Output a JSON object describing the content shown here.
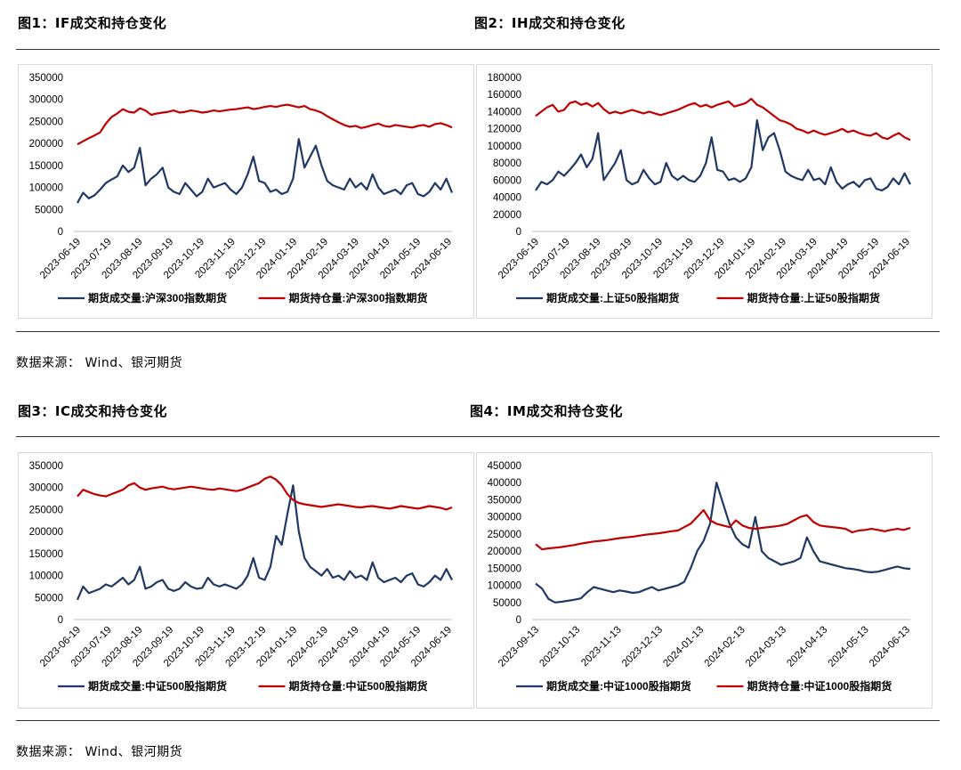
{
  "figures": [
    {
      "title": "图1：IF成交和持仓变化"
    },
    {
      "title": "图2：IH成交和持仓变化"
    },
    {
      "title": "图3：IC成交和持仓变化"
    },
    {
      "title": "图4：IM成交和持仓变化"
    }
  ],
  "sources": [
    "数据来源： Wind、银河期货",
    "数据来源： Wind、银河期货"
  ],
  "colors": {
    "volume": "#1f3864",
    "open_interest": "#c00000",
    "axis": "#bfbfbf"
  },
  "chart_data": [
    {
      "type": "line",
      "ylim": [
        0,
        350000
      ],
      "yticks": [
        "350000",
        "300000",
        "250000",
        "200000",
        "150000",
        "100000",
        "50000",
        "0"
      ],
      "xticks": [
        "2023-06-19",
        "2023-07-19",
        "2023-08-19",
        "2023-09-19",
        "2023-10-19",
        "2023-11-19",
        "2023-12-19",
        "2024-01-19",
        "2024-02-19",
        "2024-03-19",
        "2024-04-19",
        "2024-05-19",
        "2024-06-19"
      ],
      "series": [
        {
          "name": "期货成交量:沪深300指数期货",
          "values": [
            65000,
            88000,
            75000,
            82000,
            95000,
            110000,
            118000,
            125000,
            150000,
            135000,
            145000,
            190000,
            105000,
            120000,
            130000,
            145000,
            100000,
            90000,
            85000,
            110000,
            95000,
            80000,
            90000,
            120000,
            100000,
            105000,
            110000,
            95000,
            85000,
            100000,
            130000,
            170000,
            115000,
            110000,
            90000,
            95000,
            85000,
            90000,
            120000,
            210000,
            145000,
            170000,
            195000,
            150000,
            115000,
            105000,
            100000,
            95000,
            120000,
            100000,
            110000,
            95000,
            130000,
            100000,
            85000,
            90000,
            95000,
            85000,
            105000,
            110000,
            85000,
            80000,
            90000,
            110000,
            95000,
            120000,
            88000
          ]
        },
        {
          "name": "期货持仓量:沪深300指数期货",
          "values": [
            198000,
            205000,
            212000,
            218000,
            225000,
            245000,
            260000,
            268000,
            278000,
            272000,
            270000,
            280000,
            275000,
            265000,
            268000,
            270000,
            272000,
            275000,
            270000,
            272000,
            275000,
            273000,
            270000,
            272000,
            275000,
            273000,
            275000,
            277000,
            278000,
            280000,
            282000,
            278000,
            280000,
            283000,
            285000,
            283000,
            286000,
            288000,
            285000,
            282000,
            285000,
            278000,
            275000,
            270000,
            262000,
            255000,
            248000,
            242000,
            238000,
            240000,
            235000,
            238000,
            242000,
            245000,
            240000,
            238000,
            242000,
            240000,
            238000,
            236000,
            240000,
            242000,
            238000,
            244000,
            246000,
            242000,
            236000
          ]
        }
      ]
    },
    {
      "type": "line",
      "ylim": [
        0,
        180000
      ],
      "yticks": [
        "180000",
        "160000",
        "140000",
        "120000",
        "100000",
        "80000",
        "60000",
        "40000",
        "20000",
        "0"
      ],
      "xticks": [
        "2023-06-19",
        "2023-07-19",
        "2023-08-19",
        "2023-09-19",
        "2023-10-19",
        "2023-11-19",
        "2023-12-19",
        "2024-01-19",
        "2024-02-19",
        "2024-03-19",
        "2024-04-19",
        "2024-05-19",
        "2024-06-19"
      ],
      "series": [
        {
          "name": "期货成交量:上证50股指期货",
          "values": [
            48000,
            58000,
            55000,
            60000,
            70000,
            65000,
            72000,
            80000,
            90000,
            75000,
            85000,
            115000,
            60000,
            70000,
            80000,
            95000,
            60000,
            55000,
            58000,
            72000,
            62000,
            55000,
            58000,
            80000,
            65000,
            60000,
            65000,
            60000,
            58000,
            65000,
            80000,
            110000,
            72000,
            70000,
            60000,
            62000,
            58000,
            62000,
            75000,
            130000,
            95000,
            110000,
            115000,
            95000,
            70000,
            65000,
            62000,
            60000,
            72000,
            60000,
            62000,
            55000,
            75000,
            58000,
            50000,
            55000,
            58000,
            52000,
            60000,
            62000,
            50000,
            48000,
            52000,
            62000,
            55000,
            68000,
            55000
          ]
        },
        {
          "name": "期货持仓量:上证50股指期货",
          "values": [
            135000,
            140000,
            145000,
            148000,
            140000,
            142000,
            150000,
            152000,
            148000,
            150000,
            146000,
            150000,
            143000,
            138000,
            140000,
            138000,
            140000,
            142000,
            140000,
            138000,
            140000,
            138000,
            136000,
            138000,
            140000,
            142000,
            145000,
            148000,
            150000,
            146000,
            148000,
            145000,
            148000,
            150000,
            152000,
            146000,
            148000,
            150000,
            155000,
            148000,
            145000,
            140000,
            135000,
            130000,
            128000,
            125000,
            120000,
            118000,
            115000,
            118000,
            115000,
            113000,
            115000,
            117000,
            120000,
            116000,
            118000,
            115000,
            113000,
            112000,
            115000,
            110000,
            108000,
            112000,
            115000,
            110000,
            107000
          ]
        }
      ]
    },
    {
      "type": "line",
      "ylim": [
        0,
        350000
      ],
      "yticks": [
        "350000",
        "300000",
        "250000",
        "200000",
        "150000",
        "100000",
        "50000",
        "0"
      ],
      "xticks": [
        "2023-06-19",
        "2023-07-19",
        "2023-08-19",
        "2023-09-19",
        "2023-10-19",
        "2023-11-19",
        "2023-12-19",
        "2024-01-19",
        "2024-02-19",
        "2024-03-19",
        "2024-04-19",
        "2024-05-19",
        "2024-06-19"
      ],
      "series": [
        {
          "name": "期货成交量:中证500股指期货",
          "values": [
            45000,
            75000,
            60000,
            65000,
            70000,
            80000,
            75000,
            85000,
            95000,
            80000,
            90000,
            120000,
            70000,
            75000,
            85000,
            90000,
            70000,
            65000,
            70000,
            85000,
            75000,
            70000,
            72000,
            95000,
            80000,
            75000,
            80000,
            75000,
            70000,
            80000,
            100000,
            140000,
            95000,
            90000,
            120000,
            190000,
            170000,
            240000,
            305000,
            200000,
            140000,
            120000,
            110000,
            100000,
            115000,
            95000,
            100000,
            90000,
            110000,
            95000,
            100000,
            90000,
            130000,
            95000,
            85000,
            90000,
            95000,
            85000,
            100000,
            105000,
            80000,
            75000,
            85000,
            100000,
            90000,
            115000,
            90000
          ]
        },
        {
          "name": "期货持仓量:中证500股指期货",
          "values": [
            280000,
            295000,
            290000,
            285000,
            282000,
            280000,
            285000,
            290000,
            295000,
            305000,
            310000,
            300000,
            295000,
            298000,
            300000,
            302000,
            298000,
            296000,
            298000,
            300000,
            302000,
            300000,
            298000,
            296000,
            295000,
            298000,
            296000,
            294000,
            292000,
            295000,
            300000,
            305000,
            310000,
            320000,
            325000,
            318000,
            305000,
            285000,
            272000,
            265000,
            262000,
            260000,
            258000,
            256000,
            258000,
            260000,
            262000,
            260000,
            258000,
            256000,
            255000,
            257000,
            258000,
            256000,
            254000,
            252000,
            255000,
            258000,
            256000,
            254000,
            252000,
            255000,
            258000,
            256000,
            254000,
            250000,
            255000
          ]
        }
      ]
    },
    {
      "type": "line",
      "ylim": [
        0,
        450000
      ],
      "yticks": [
        "450000",
        "400000",
        "350000",
        "300000",
        "250000",
        "200000",
        "150000",
        "100000",
        "50000",
        "0"
      ],
      "xticks": [
        "2023-09-13",
        "2023-10-13",
        "2023-11-13",
        "2023-12-13",
        "2024-01-13",
        "2024-02-13",
        "2024-03-13",
        "2024-04-13",
        "2024-05-13",
        "2024-06-13"
      ],
      "series": [
        {
          "name": "期货成交量:中证1000股指期货",
          "values": [
            105000,
            90000,
            60000,
            50000,
            52000,
            55000,
            58000,
            62000,
            80000,
            95000,
            90000,
            85000,
            80000,
            85000,
            82000,
            78000,
            80000,
            88000,
            95000,
            85000,
            90000,
            95000,
            100000,
            110000,
            150000,
            200000,
            230000,
            280000,
            400000,
            340000,
            280000,
            240000,
            220000,
            210000,
            300000,
            200000,
            180000,
            170000,
            160000,
            165000,
            170000,
            180000,
            240000,
            200000,
            170000,
            165000,
            160000,
            155000,
            150000,
            148000,
            145000,
            140000,
            138000,
            140000,
            145000,
            150000,
            155000,
            150000,
            148000
          ]
        },
        {
          "name": "期货持仓量:中证1000股指期货",
          "values": [
            220000,
            205000,
            208000,
            210000,
            212000,
            215000,
            218000,
            222000,
            225000,
            228000,
            230000,
            232000,
            235000,
            238000,
            240000,
            242000,
            245000,
            248000,
            250000,
            252000,
            255000,
            258000,
            260000,
            270000,
            280000,
            300000,
            320000,
            290000,
            280000,
            275000,
            270000,
            290000,
            275000,
            268000,
            265000,
            268000,
            270000,
            272000,
            275000,
            280000,
            290000,
            300000,
            305000,
            285000,
            275000,
            272000,
            270000,
            268000,
            265000,
            255000,
            260000,
            262000,
            265000,
            262000,
            258000,
            262000,
            265000,
            262000,
            268000
          ]
        }
      ]
    }
  ]
}
